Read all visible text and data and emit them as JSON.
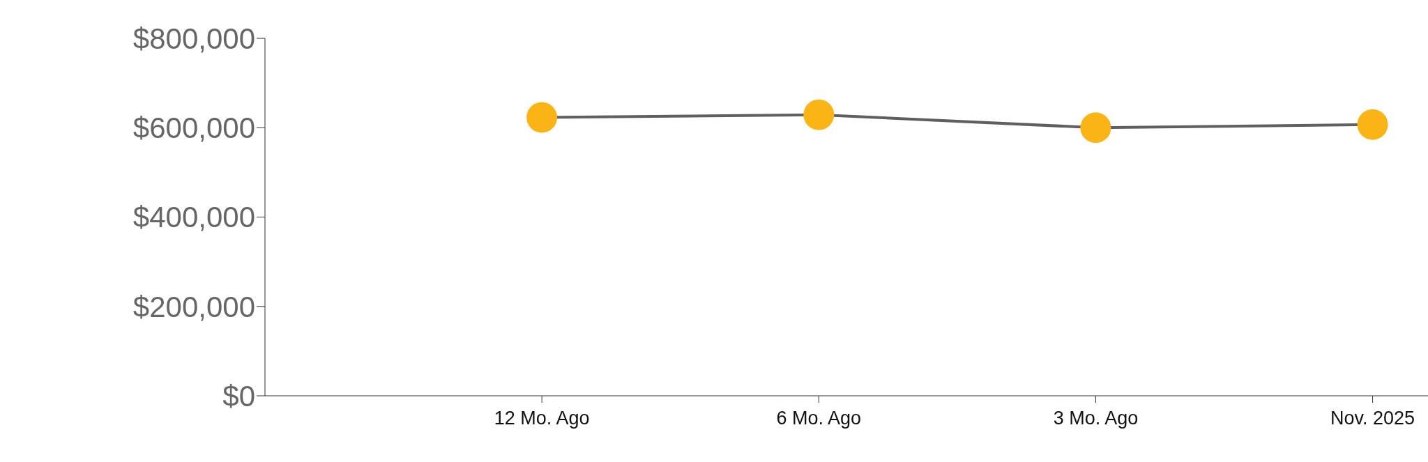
{
  "chart_data": {
    "type": "line",
    "categories": [
      "12 Mo. Ago",
      "6 Mo. Ago",
      "3 Mo. Ago",
      "Nov. 2025"
    ],
    "series": [
      {
        "color": "#5f5f5f",
        "colors": [
          "#fbb416",
          "#fbb416",
          "#fbb416",
          "#fbb416"
        ],
        "values": [
          623000,
          629000,
          600000,
          607000
        ]
      }
    ],
    "marker": "circle",
    "line_style": "solid",
    "grid": false,
    "legend": false,
    "ylim": [
      0,
      800000
    ],
    "yticks": [
      {
        "value": 0,
        "label": "$0"
      },
      {
        "value": 200000,
        "label": "$200,000"
      },
      {
        "value": 400000,
        "label": "$400,000"
      },
      {
        "value": 600000,
        "label": "$600,000"
      },
      {
        "value": 800000,
        "label": "$800,000"
      }
    ]
  }
}
